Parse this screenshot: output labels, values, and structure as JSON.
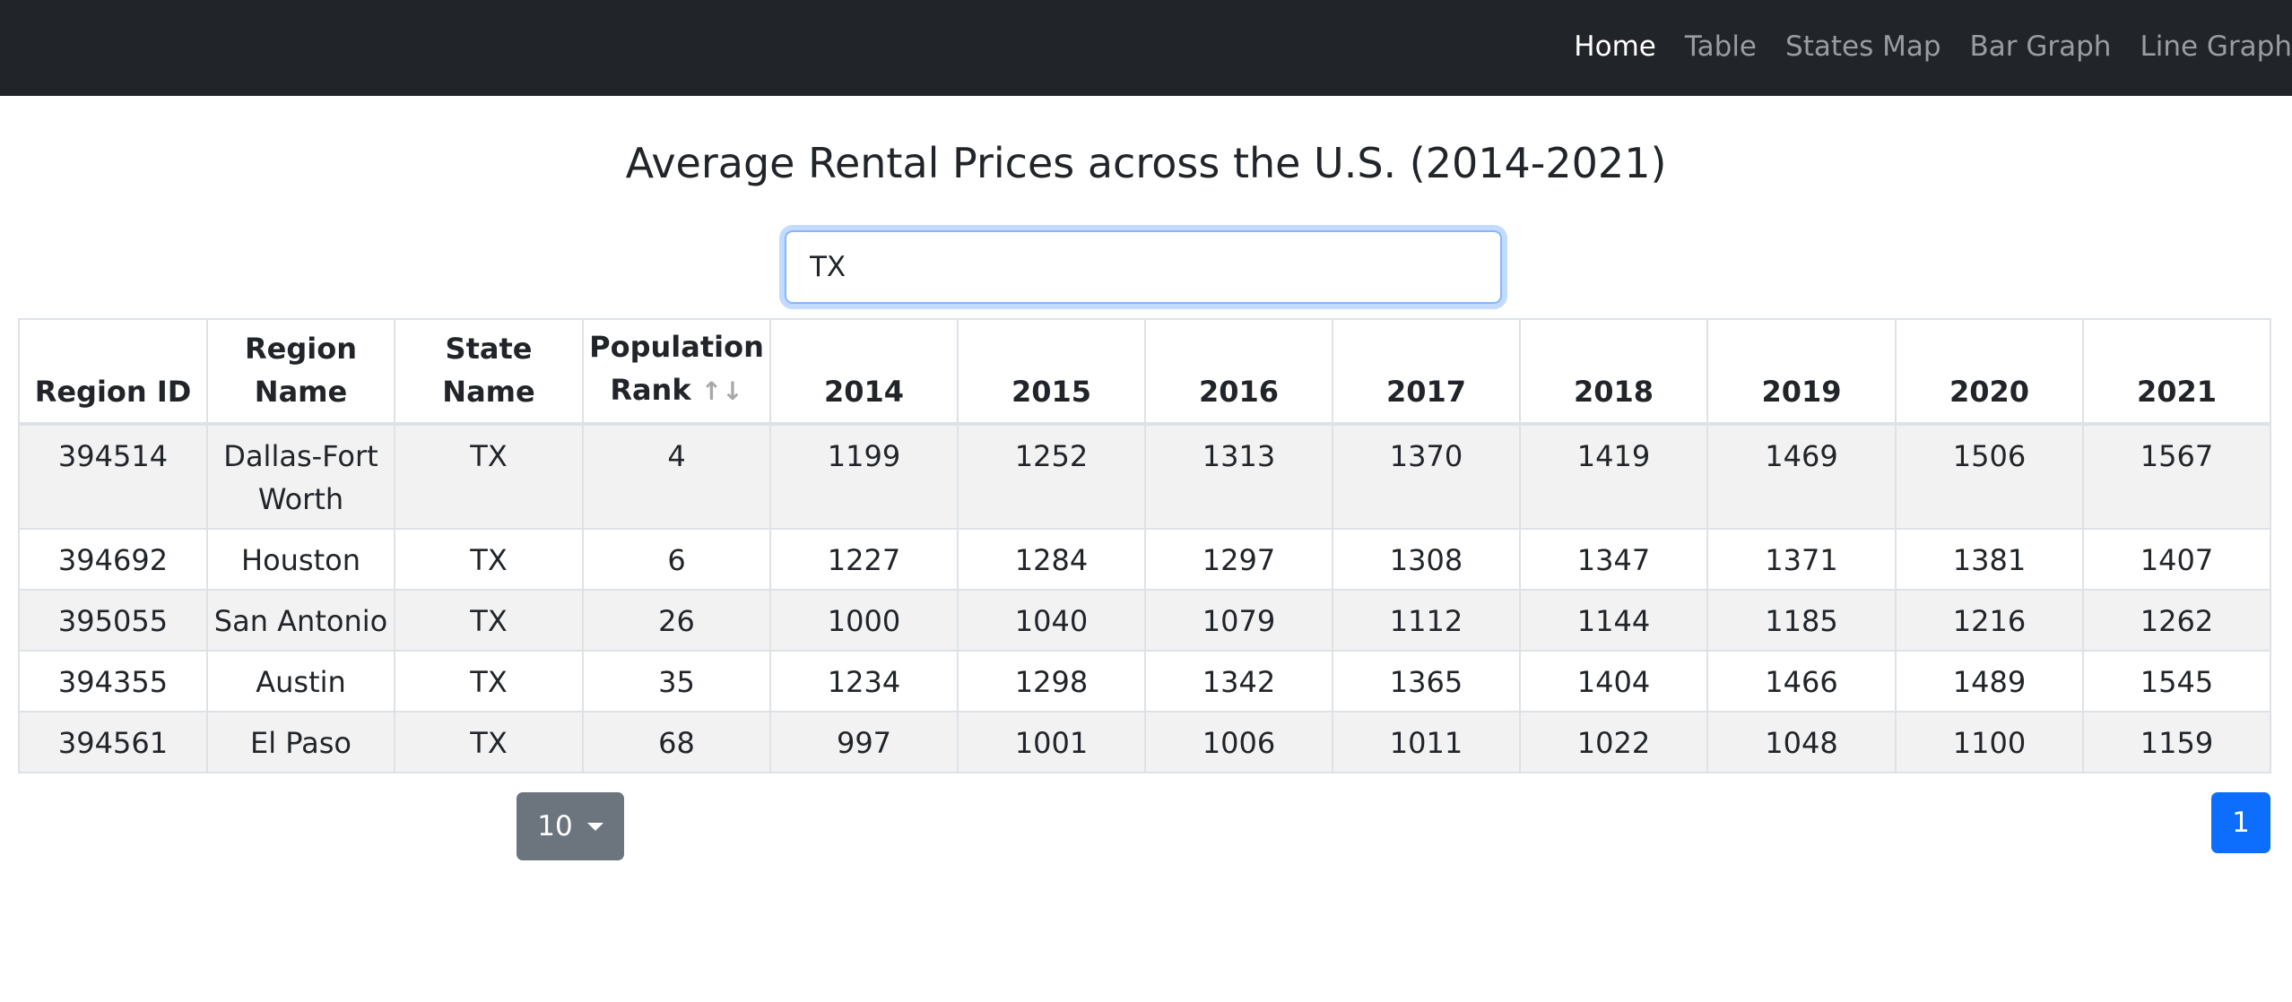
{
  "nav": {
    "links": [
      "Home",
      "Table",
      "States Map",
      "Bar Graph",
      "Line Graph"
    ],
    "active": "Home"
  },
  "title": "Average Rental Prices across the U.S. (2014-2021)",
  "search": {
    "value": "TX",
    "placeholder": ""
  },
  "table": {
    "headers": {
      "region_id": "Region ID",
      "region_name_1": "Region",
      "region_name_2": "Name",
      "state_name": "State Name",
      "population_1": "Population",
      "population_2": "Rank",
      "sort_icons": "↑↓",
      "years": [
        "2014",
        "2015",
        "2016",
        "2017",
        "2018",
        "2019",
        "2020",
        "2021"
      ]
    },
    "rows": [
      {
        "region_id": "394514",
        "region_name_1": "Dallas-Fort",
        "region_name_2": "Worth",
        "state": "TX",
        "rank": "4",
        "values": [
          "1199",
          "1252",
          "1313",
          "1370",
          "1419",
          "1469",
          "1506",
          "1567"
        ]
      },
      {
        "region_id": "394692",
        "region_name_1": "Houston",
        "region_name_2": "",
        "state": "TX",
        "rank": "6",
        "values": [
          "1227",
          "1284",
          "1297",
          "1308",
          "1347",
          "1371",
          "1381",
          "1407"
        ]
      },
      {
        "region_id": "395055",
        "region_name_1": "San Antonio",
        "region_name_2": "",
        "state": "TX",
        "rank": "26",
        "values": [
          "1000",
          "1040",
          "1079",
          "1112",
          "1144",
          "1185",
          "1216",
          "1262"
        ]
      },
      {
        "region_id": "394355",
        "region_name_1": "Austin",
        "region_name_2": "",
        "state": "TX",
        "rank": "35",
        "values": [
          "1234",
          "1298",
          "1342",
          "1365",
          "1404",
          "1466",
          "1489",
          "1545"
        ]
      },
      {
        "region_id": "394561",
        "region_name_1": "El Paso",
        "region_name_2": "",
        "state": "TX",
        "rank": "68",
        "values": [
          "997",
          "1001",
          "1006",
          "1011",
          "1022",
          "1048",
          "1100",
          "1159"
        ]
      }
    ]
  },
  "pagination": {
    "per_page": "10",
    "current_page": "1"
  },
  "colors": {
    "navbar": "#212529",
    "active_link": "#ffffff",
    "inactive_link": "#9a9da0",
    "per_page_button": "#6c757d",
    "page_button": "#0d6efd",
    "striped_row": "#f2f2f2"
  }
}
